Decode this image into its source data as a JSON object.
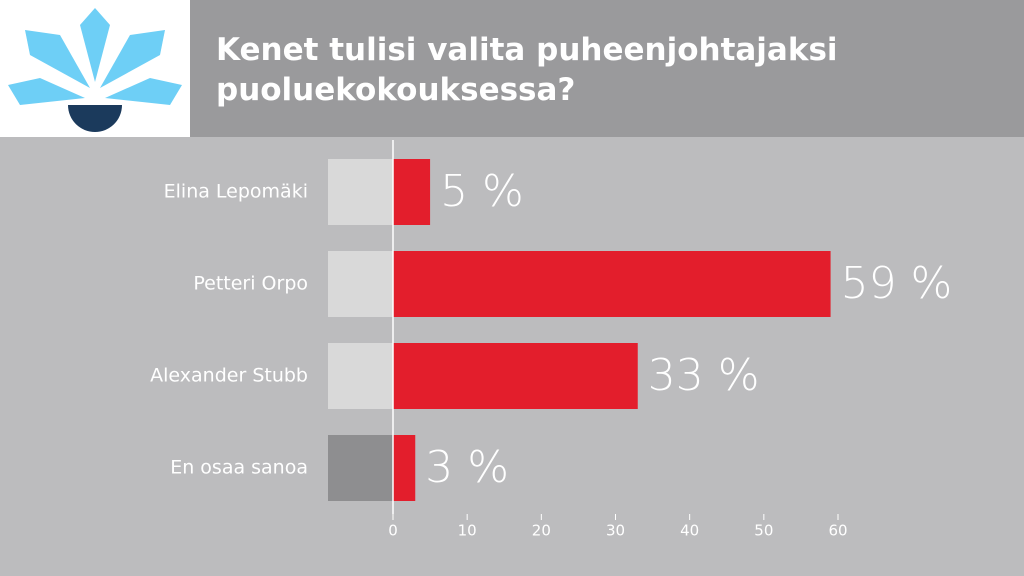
{
  "chart_data": {
    "type": "bar",
    "title": "Kenet tulisi valita puheenjohtajaksi puoluekokouksessa?",
    "categories": [
      "Elina Lepomäki",
      "Petteri Orpo",
      "Alexander Stubb",
      "En osaa sanoa"
    ],
    "values": [
      5,
      59,
      33,
      3
    ],
    "value_labels": [
      "5 %",
      "59 %",
      "33 %",
      "3 %"
    ],
    "color": "#e31e2c",
    "xlim": [
      0,
      60
    ],
    "xticks": [
      0,
      10,
      20,
      30,
      40,
      50,
      60
    ]
  }
}
